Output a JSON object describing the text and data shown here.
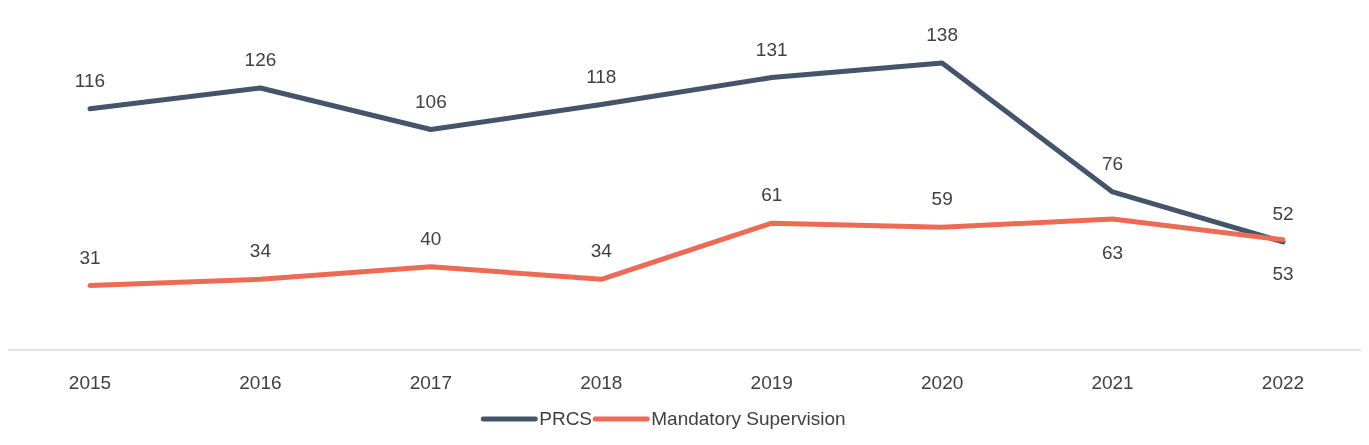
{
  "chart_data": {
    "type": "line",
    "categories": [
      "2015",
      "2016",
      "2017",
      "2018",
      "2019",
      "2020",
      "2021",
      "2022"
    ],
    "series": [
      {
        "name": "PRCS",
        "color": "#44546a",
        "values": [
          116,
          126,
          106,
          118,
          131,
          138,
          76,
          52
        ]
      },
      {
        "name": "Mandatory Supervision",
        "color": "#ed6b55",
        "values": [
          31,
          34,
          40,
          34,
          61,
          59,
          63,
          53
        ]
      }
    ],
    "tick_labels": "x",
    "data_labels": true,
    "legend": "bottom",
    "grid": false,
    "marker": "none",
    "line_style": "solid"
  }
}
